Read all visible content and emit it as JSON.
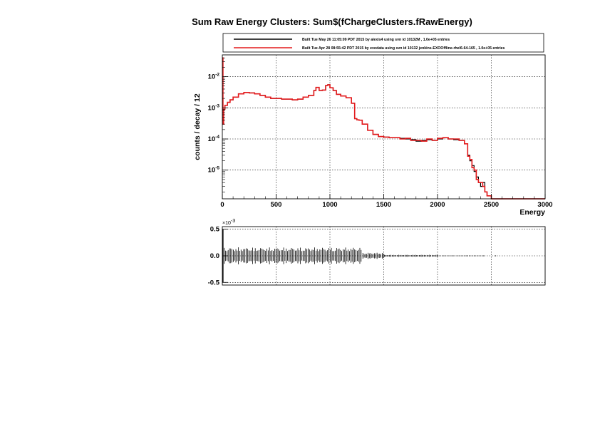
{
  "chart_data": [
    {
      "type": "line",
      "title": "Sum Raw Energy Clusters: Sum$(fChargeClusters.fRawEnergy)",
      "xlabel": "Energy",
      "ylabel": "counts / decay / 12",
      "xlim": [
        0,
        3000
      ],
      "ylim": [
        1.2e-06,
        0.05
      ],
      "yscale": "log",
      "grid": true,
      "legend_position": "top",
      "x_ticks": [
        "0",
        "500",
        "1000",
        "1500",
        "2000",
        "2500",
        "3000"
      ],
      "y_ticks": [
        {
          "value": 0.01,
          "base": "10",
          "exp": "-2"
        },
        {
          "value": 0.001,
          "base": "10",
          "exp": "-3"
        },
        {
          "value": 0.0001,
          "base": "10",
          "exp": "-4"
        },
        {
          "value": 1e-05,
          "base": "10",
          "exp": "-5"
        }
      ],
      "x": [
        0,
        6,
        12,
        24,
        48,
        72,
        100,
        150,
        200,
        250,
        300,
        350,
        400,
        450,
        500,
        550,
        600,
        650,
        700,
        750,
        800,
        850,
        870,
        900,
        930,
        960,
        980,
        1000,
        1030,
        1060,
        1100,
        1150,
        1200,
        1230,
        1250,
        1270,
        1300,
        1350,
        1400,
        1450,
        1500,
        1550,
        1600,
        1650,
        1700,
        1750,
        1800,
        1850,
        1900,
        1950,
        2000,
        2050,
        2100,
        2150,
        2200,
        2250,
        2280,
        2300,
        2320,
        2340,
        2360,
        2380,
        2400,
        2420,
        2440,
        2460,
        2500,
        2600,
        2700,
        2800,
        2900,
        3000
      ],
      "series": [
        {
          "name": "Built Tue May 26 11:05:09 PDT 2015 by alexis4 using svn id 10132M , 1.0e+05 entries",
          "color": "#000000",
          "values": [
            0.04,
            0.0003,
            0.0009,
            0.0012,
            0.0015,
            0.0018,
            0.0022,
            0.0028,
            0.0031,
            0.003,
            0.0028,
            0.0025,
            0.0022,
            0.002,
            0.002,
            0.0019,
            0.0019,
            0.0018,
            0.0019,
            0.0022,
            0.0025,
            0.0036,
            0.0045,
            0.0036,
            0.0037,
            0.0052,
            0.0055,
            0.0044,
            0.0036,
            0.0027,
            0.0024,
            0.0021,
            0.0014,
            0.00045,
            0.00041,
            0.0004,
            0.0003,
            0.00019,
            0.00014,
            0.00012,
            0.000115,
            0.00011,
            0.00011,
            0.000105,
            0.0001,
            9.5e-05,
            8.5e-05,
            9e-05,
            9.5e-05,
            9e-05,
            0.0001,
            0.00011,
            0.0001,
            9.5e-05,
            9e-05,
            7e-05,
            3e-05,
            2e-05,
            1.4e-05,
            9e-06,
            6e-06,
            4e-06,
            3e-06,
            4e-06,
            2e-06,
            1.5e-06,
            1.2e-06,
            1.2e-06,
            1.2e-06,
            1.2e-06,
            1.2e-06,
            1.2e-06
          ]
        },
        {
          "name": "Built Tue Apr 28 08:55:42 PDT 2015 by exodata using svn id 10132 jenkins-EXOOffline-rhel6-64-165 , 1.0e+05 entries",
          "color": "#e31a1c",
          "values": [
            0.04,
            0.0003,
            0.0009,
            0.0012,
            0.0015,
            0.0018,
            0.0022,
            0.0028,
            0.0031,
            0.003,
            0.0028,
            0.0025,
            0.0022,
            0.002,
            0.002,
            0.0019,
            0.0019,
            0.0018,
            0.0019,
            0.0022,
            0.0025,
            0.0036,
            0.0045,
            0.0036,
            0.0037,
            0.0052,
            0.0055,
            0.0044,
            0.0036,
            0.0027,
            0.0024,
            0.0021,
            0.0014,
            0.00045,
            0.00041,
            0.0004,
            0.0003,
            0.00019,
            0.00014,
            0.00012,
            0.000115,
            0.00011,
            0.00011,
            0.0001,
            0.000105,
            9e-05,
            9e-05,
            8.5e-05,
            0.0001,
            9e-05,
            0.000105,
            0.00011,
            0.0001,
            0.0001,
            9e-05,
            7e-05,
            2.8e-05,
            2.2e-05,
            1.2e-05,
            1e-05,
            5e-06,
            4e-06,
            4e-06,
            3e-06,
            2e-06,
            1.5e-06,
            1.2e-06,
            1.2e-06,
            1.2e-06,
            1.2e-06,
            1.2e-06,
            1.2e-06
          ]
        }
      ]
    },
    {
      "type": "bar",
      "title": "",
      "xlabel": "",
      "ylabel": "",
      "xlim": [
        0,
        3000
      ],
      "ylim": [
        -0.55,
        0.55
      ],
      "grid": true,
      "exponent_label": {
        "base": "×10",
        "exp": "-3"
      },
      "y_ticks": [
        "0.5",
        "0.0",
        "-0.5"
      ],
      "description_bands": [
        {
          "x_start": 0,
          "x_end": 1300,
          "amplitude": 0.16
        },
        {
          "x_start": 1300,
          "x_end": 1500,
          "amplitude": 0.06
        },
        {
          "x_start": 1500,
          "x_end": 2000,
          "amplitude": 0.02
        },
        {
          "x_start": 2000,
          "x_end": 2450,
          "amplitude": 0.008
        }
      ]
    }
  ]
}
